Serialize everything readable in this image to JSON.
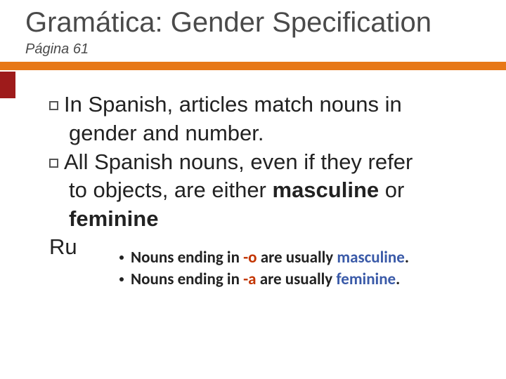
{
  "title": "Gramática: Gender Specification",
  "subtitle": "Página 61",
  "colors": {
    "accent_bar": "#e77817",
    "accent_block": "#9e1b1b",
    "title_text": "#4a4a4a",
    "body_text": "#222222",
    "ending_text": "#c23400",
    "gender_text": "#3a5aa8",
    "background": "#ffffff"
  },
  "bullets": [
    {
      "line1_prefix": "In Spanish, articles match nouns in",
      "line2": "gender and number."
    },
    {
      "line1_prefix": "All Spanish nouns, even if they refer",
      "line2_a": "to objects, are either ",
      "line2_b_bold": "masculine",
      "line2_c": " or",
      "line3_bold": "feminine"
    }
  ],
  "rule_label_visible": "Ru",
  "rule_label_full": "Rule of thumb:",
  "notes": [
    {
      "pre": "Nouns ending in ",
      "ending": "-o",
      "mid": " are usually ",
      "gender": "masculine",
      "post": "."
    },
    {
      "pre": "Nouns ending in ",
      "ending": "-a",
      "mid": " are usually ",
      "gender": "feminine",
      "post": "."
    }
  ]
}
